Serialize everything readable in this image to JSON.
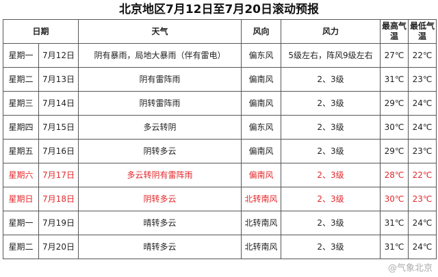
{
  "title": "北京地区7月12日至7月20日滚动预报",
  "headers": {
    "date": "日期",
    "weather": "天气",
    "wind_dir": "风向",
    "wind_force": "风力",
    "high": "最高气温",
    "low": "最低气温"
  },
  "rows": [
    {
      "day": "星期一",
      "date": "7月12日",
      "weather": "阴有暴雨，局地大暴雨（伴有雷电）",
      "wind_dir": "偏东风",
      "wind_force": "5级左右，阵风9级左右",
      "high": "27℃",
      "low": "22℃"
    },
    {
      "day": "星期二",
      "date": "7月13日",
      "weather": "阴有雷阵雨",
      "wind_dir": "偏南风",
      "wind_force": "2、3级",
      "high": "31℃",
      "low": "23℃"
    },
    {
      "day": "星期三",
      "date": "7月14日",
      "weather": "阴转雷阵雨",
      "wind_dir": "偏南风",
      "wind_force": "2、3级",
      "high": "29℃",
      "low": "24℃"
    },
    {
      "day": "星期四",
      "date": "7月15日",
      "weather": "多云转阴",
      "wind_dir": "偏东风",
      "wind_force": "2、3级",
      "high": "30℃",
      "low": "24℃"
    },
    {
      "day": "星期五",
      "date": "7月16日",
      "weather": "阴转多云",
      "wind_dir": "偏南风",
      "wind_force": "2、3级",
      "high": "29℃",
      "low": "23℃"
    },
    {
      "day": "星期六",
      "date": "7月17日",
      "weather": "多云转阴有雷阵雨",
      "wind_dir": "偏南风",
      "wind_force": "2、3级",
      "high": "28℃",
      "low": "22℃"
    },
    {
      "day": "星期日",
      "date": "7月18日",
      "weather": "阴转多云",
      "wind_dir": "北转南风",
      "wind_force": "2、3级",
      "high": "30℃",
      "low": "23℃"
    },
    {
      "day": "星期一",
      "date": "7月19日",
      "weather": "晴转多云",
      "wind_dir": "北转南风",
      "wind_force": "2、3级",
      "high": "31℃",
      "low": "24℃"
    },
    {
      "day": "星期二",
      "date": "7月20日",
      "weather": "晴转多云",
      "wind_dir": "北转南风",
      "wind_force": "2、3级",
      "high": "31℃",
      "low": "24℃"
    }
  ],
  "weekend_color": "#e3262a",
  "watermark": "@气象北京"
}
